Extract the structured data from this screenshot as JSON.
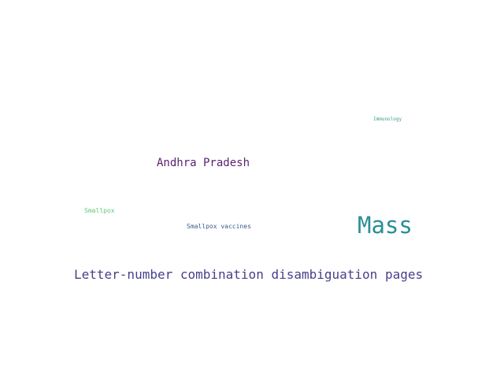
{
  "words": [
    {
      "text": "Immunology",
      "color": "#3e9b8a"
    },
    {
      "text": "Andhra Pradesh",
      "color": "#5a1f6e"
    },
    {
      "text": "Smallpox",
      "color": "#5fc97a"
    },
    {
      "text": "Smallpox vaccines",
      "color": "#3b5c8c"
    },
    {
      "text": "Mass",
      "color": "#2a8f94"
    },
    {
      "text": "Letter-number combination disambiguation pages",
      "color": "#47408a"
    }
  ]
}
